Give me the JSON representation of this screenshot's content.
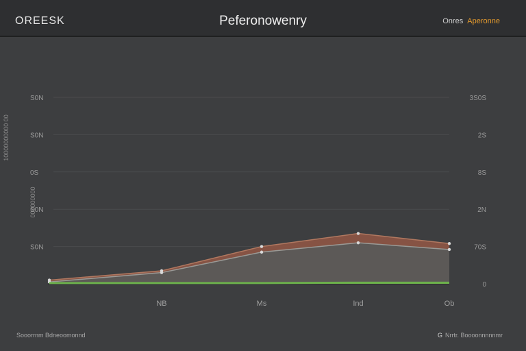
{
  "header": {
    "brand": "OREESK",
    "title": "Peferonowenry",
    "link_a": "Onres",
    "link_b": "Aperonne"
  },
  "side_labels": {
    "primary": "10000000000 00",
    "secondary": "000000000"
  },
  "footer": {
    "left": "Sooorrnm  Bdneoomonnd",
    "right_icon": "G",
    "right": "Nrrtr.  Boooonnnnnmr"
  },
  "colors": {
    "background": "#3d3e40",
    "series_a": "#8a5444",
    "series_b": "#5a5a58",
    "series_c": "#6cb04c",
    "series_a_edge": "#b07860",
    "series_b_edge": "#9a9a96"
  },
  "chart_data": {
    "type": "area",
    "title": "Peferonowenry",
    "x": [
      "",
      "NB",
      "Ms",
      "Ind",
      "Ob"
    ],
    "left_axis_ticks": [
      "",
      "S0N",
      "S0N",
      "0S",
      "S0N",
      "S0N"
    ],
    "right_axis_ticks": [
      "0",
      "70S",
      "2N",
      "8S",
      "2S",
      "3S0S"
    ],
    "ylim": [
      0,
      5
    ],
    "series": [
      {
        "values": [
          0.1,
          0.35,
          1.0,
          1.35,
          1.08
        ]
      },
      {
        "values": [
          0.05,
          0.3,
          0.85,
          1.1,
          0.92
        ]
      },
      {
        "values": [
          0.02,
          0.02,
          0.02,
          0.03,
          0.03
        ]
      }
    ]
  }
}
